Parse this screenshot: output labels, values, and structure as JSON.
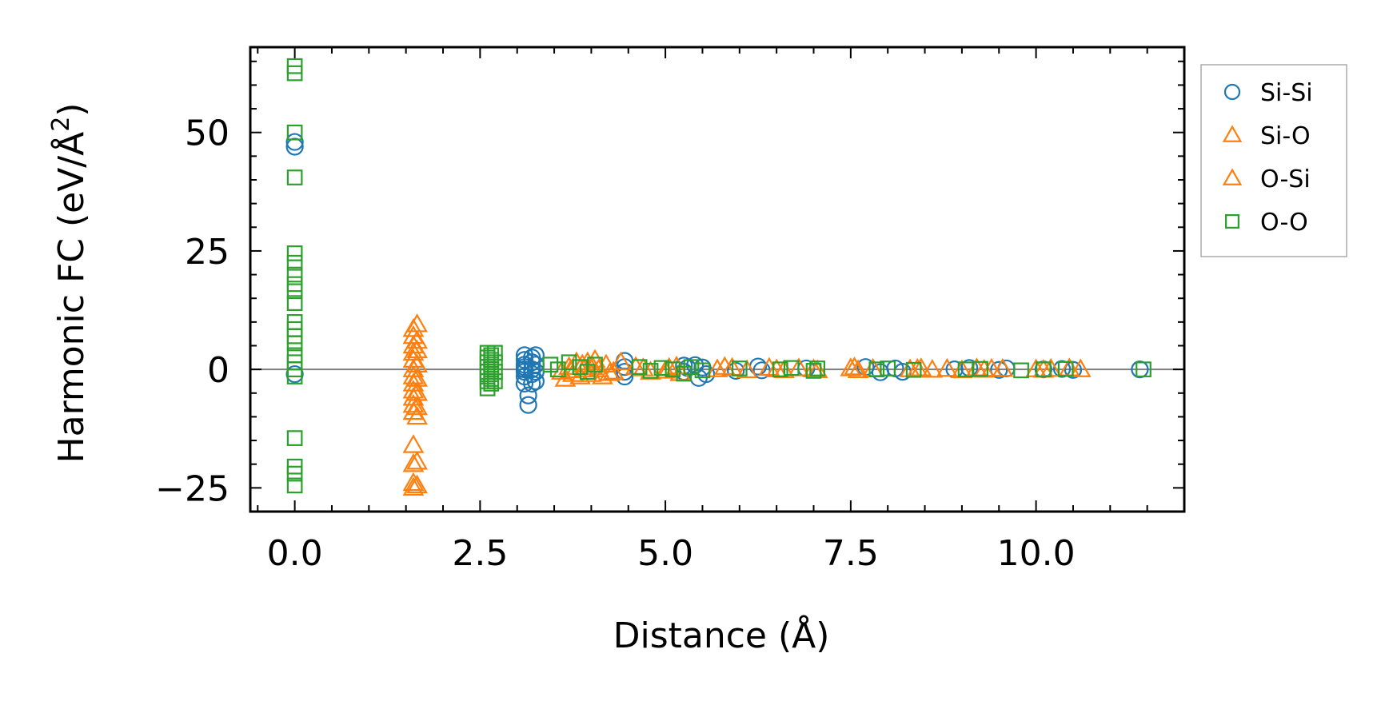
{
  "chart_data": {
    "type": "scatter",
    "title": "",
    "xlabel": "Distance (Å)",
    "ylabel": "Harmonic FC (eV/Å",
    "ylabel_superscript": "2",
    "ylabel_suffix": ")",
    "xlim": [
      -0.6,
      12.0
    ],
    "ylim": [
      -30,
      68
    ],
    "xticks": [
      0.0,
      2.5,
      5.0,
      7.5,
      10.0
    ],
    "xtick_labels": [
      "0.0",
      "2.5",
      "5.0",
      "7.5",
      "10.0"
    ],
    "yticks": [
      -25,
      0,
      25,
      50
    ],
    "ytick_labels": [
      "−25",
      "0",
      "25",
      "50"
    ],
    "reference_line_y": 0,
    "legend_position": "outside-right",
    "series": [
      {
        "name": "Si-Si",
        "marker": "circle",
        "color": "#1f77b4",
        "points": [
          [
            0.0,
            48.0
          ],
          [
            0.0,
            47.0
          ],
          [
            0.0,
            -1.0
          ],
          [
            3.1,
            3.0
          ],
          [
            3.1,
            2.0
          ],
          [
            3.1,
            1.0
          ],
          [
            3.1,
            0.5
          ],
          [
            3.1,
            0.0
          ],
          [
            3.1,
            -0.5
          ],
          [
            3.1,
            -1.5
          ],
          [
            3.1,
            -3.0
          ],
          [
            3.15,
            -5.5
          ],
          [
            3.15,
            -7.5
          ],
          [
            3.2,
            2.5
          ],
          [
            3.2,
            1.5
          ],
          [
            3.2,
            0.0
          ],
          [
            3.2,
            -1.0
          ],
          [
            3.2,
            -3.0
          ],
          [
            3.25,
            3.0
          ],
          [
            3.25,
            1.0
          ],
          [
            3.25,
            -0.5
          ],
          [
            3.25,
            -2.5
          ],
          [
            4.45,
            1.8
          ],
          [
            4.45,
            0.5
          ],
          [
            4.45,
            -0.5
          ],
          [
            4.45,
            -1.5
          ],
          [
            5.25,
            0.8
          ],
          [
            5.25,
            -0.5
          ],
          [
            5.3,
            0.3
          ],
          [
            5.4,
            0.9
          ],
          [
            5.45,
            -1.8
          ],
          [
            5.5,
            0.4
          ],
          [
            5.55,
            -1.0
          ],
          [
            5.95,
            -0.3
          ],
          [
            6.25,
            0.6
          ],
          [
            6.3,
            -0.2
          ],
          [
            6.9,
            0.2
          ],
          [
            7.7,
            0.5
          ],
          [
            7.9,
            -0.6
          ],
          [
            8.1,
            0.2
          ],
          [
            8.2,
            -0.5
          ],
          [
            8.9,
            0.0
          ],
          [
            9.1,
            0.3
          ],
          [
            9.5,
            -0.1
          ],
          [
            9.6,
            0.2
          ],
          [
            10.1,
            0.0
          ],
          [
            10.35,
            0.1
          ],
          [
            10.5,
            -0.1
          ],
          [
            11.4,
            0.0
          ]
        ]
      },
      {
        "name": "Si-O",
        "marker": "triangle",
        "color": "#ff7f0e",
        "points": [
          [
            1.6,
            8.5
          ],
          [
            1.6,
            7.0
          ],
          [
            1.6,
            5.0
          ],
          [
            1.6,
            3.5
          ],
          [
            1.6,
            2.0
          ],
          [
            1.6,
            0.0
          ],
          [
            1.6,
            -1.5
          ],
          [
            1.6,
            -3.0
          ],
          [
            1.6,
            -4.5
          ],
          [
            1.6,
            -6.0
          ],
          [
            1.6,
            -7.5
          ],
          [
            1.6,
            -9.0
          ],
          [
            1.6,
            -16.0
          ],
          [
            1.6,
            -20.0
          ],
          [
            1.6,
            -24.0
          ],
          [
            1.6,
            -25.0
          ],
          [
            3.6,
            -0.5
          ],
          [
            3.65,
            -2.0
          ],
          [
            3.7,
            0.5
          ],
          [
            3.75,
            -1.0
          ],
          [
            3.8,
            1.5
          ],
          [
            3.85,
            -1.5
          ],
          [
            3.9,
            0.0
          ],
          [
            3.95,
            1.5
          ],
          [
            4.0,
            -1.0
          ],
          [
            4.05,
            2.0
          ],
          [
            4.1,
            0.0
          ],
          [
            4.15,
            -1.5
          ],
          [
            4.2,
            1.0
          ],
          [
            4.3,
            -0.5
          ],
          [
            4.4,
            1.5
          ],
          [
            4.6,
            0.5
          ],
          [
            4.8,
            -0.5
          ],
          [
            5.05,
            0.3
          ],
          [
            5.2,
            -0.8
          ],
          [
            5.7,
            0.0
          ],
          [
            5.8,
            0.5
          ],
          [
            6.1,
            -0.2
          ],
          [
            6.4,
            0.3
          ],
          [
            6.6,
            -0.2
          ],
          [
            6.8,
            0.2
          ],
          [
            7.0,
            0.0
          ],
          [
            7.5,
            0.2
          ],
          [
            7.6,
            -0.2
          ],
          [
            7.8,
            0.1
          ],
          [
            8.3,
            0.0
          ],
          [
            8.45,
            0.2
          ],
          [
            8.6,
            -0.1
          ],
          [
            8.8,
            0.1
          ],
          [
            9.2,
            0.2
          ],
          [
            9.3,
            -0.1
          ],
          [
            9.55,
            0.1
          ],
          [
            10.0,
            0.0
          ],
          [
            10.2,
            0.1
          ],
          [
            10.6,
            0.0
          ]
        ]
      },
      {
        "name": "O-Si",
        "marker": "triangle",
        "color": "#ff7f0e",
        "points": [
          [
            1.65,
            9.5
          ],
          [
            1.65,
            6.0
          ],
          [
            1.65,
            4.0
          ],
          [
            1.65,
            1.0
          ],
          [
            1.65,
            -2.0
          ],
          [
            1.65,
            -5.0
          ],
          [
            1.65,
            -8.0
          ],
          [
            1.65,
            -10.0
          ],
          [
            1.65,
            -19.5
          ],
          [
            1.65,
            -24.5
          ],
          [
            3.72,
            -0.2
          ],
          [
            3.88,
            1.0
          ],
          [
            4.02,
            0.5
          ],
          [
            4.25,
            -0.8
          ],
          [
            4.7,
            0.2
          ],
          [
            5.0,
            -0.3
          ],
          [
            5.15,
            0.6
          ],
          [
            5.9,
            0.3
          ],
          [
            6.5,
            0.0
          ],
          [
            7.05,
            -0.2
          ],
          [
            7.55,
            0.4
          ],
          [
            8.4,
            0.1
          ],
          [
            9.0,
            -0.2
          ],
          [
            9.4,
            0.1
          ],
          [
            10.1,
            -0.1
          ],
          [
            10.45,
            0.2
          ]
        ]
      },
      {
        "name": "O-O",
        "marker": "square",
        "color": "#2ca02c",
        "points": [
          [
            0.0,
            64.0
          ],
          [
            0.0,
            62.5
          ],
          [
            0.0,
            50.0
          ],
          [
            0.0,
            40.5
          ],
          [
            0.0,
            24.5
          ],
          [
            0.0,
            22.5
          ],
          [
            0.0,
            20.0
          ],
          [
            0.0,
            18.0
          ],
          [
            0.0,
            16.5
          ],
          [
            0.0,
            14.0
          ],
          [
            0.0,
            10.0
          ],
          [
            0.0,
            8.5
          ],
          [
            0.0,
            7.0
          ],
          [
            0.0,
            5.5
          ],
          [
            0.0,
            3.0
          ],
          [
            0.0,
            1.5
          ],
          [
            0.0,
            0.0
          ],
          [
            0.0,
            -1.5
          ],
          [
            0.0,
            -14.5
          ],
          [
            0.0,
            -20.5
          ],
          [
            0.0,
            -22.0
          ],
          [
            0.0,
            -24.5
          ],
          [
            2.6,
            3.5
          ],
          [
            2.6,
            2.5
          ],
          [
            2.6,
            1.5
          ],
          [
            2.6,
            0.5
          ],
          [
            2.6,
            -0.5
          ],
          [
            2.6,
            -1.5
          ],
          [
            2.6,
            -2.5
          ],
          [
            2.6,
            -4.0
          ],
          [
            2.65,
            3.0
          ],
          [
            2.65,
            2.0
          ],
          [
            2.65,
            1.0
          ],
          [
            2.65,
            0.0
          ],
          [
            2.65,
            -1.0
          ],
          [
            2.65,
            -2.0
          ],
          [
            2.65,
            -3.0
          ],
          [
            2.7,
            3.5
          ],
          [
            2.7,
            1.5
          ],
          [
            2.7,
            -0.5
          ],
          [
            2.7,
            -2.5
          ],
          [
            3.45,
            1.0
          ],
          [
            3.55,
            0.0
          ],
          [
            3.7,
            1.5
          ],
          [
            3.85,
            0.5
          ],
          [
            3.95,
            -0.5
          ],
          [
            4.05,
            1.0
          ],
          [
            4.65,
            0.5
          ],
          [
            4.8,
            -0.3
          ],
          [
            4.95,
            0.3
          ],
          [
            5.1,
            0.0
          ],
          [
            5.25,
            -0.9
          ],
          [
            5.35,
            0.5
          ],
          [
            5.5,
            -0.2
          ],
          [
            6.0,
            0.2
          ],
          [
            6.55,
            0.0
          ],
          [
            6.7,
            0.3
          ],
          [
            7.0,
            -0.3
          ],
          [
            7.05,
            0.2
          ],
          [
            7.85,
            0.0
          ],
          [
            8.0,
            0.2
          ],
          [
            8.35,
            -0.1
          ],
          [
            9.05,
            0.0
          ],
          [
            9.25,
            0.1
          ],
          [
            9.8,
            -0.2
          ],
          [
            10.1,
            0.0
          ],
          [
            10.4,
            0.1
          ],
          [
            11.45,
            0.0
          ]
        ]
      }
    ]
  }
}
